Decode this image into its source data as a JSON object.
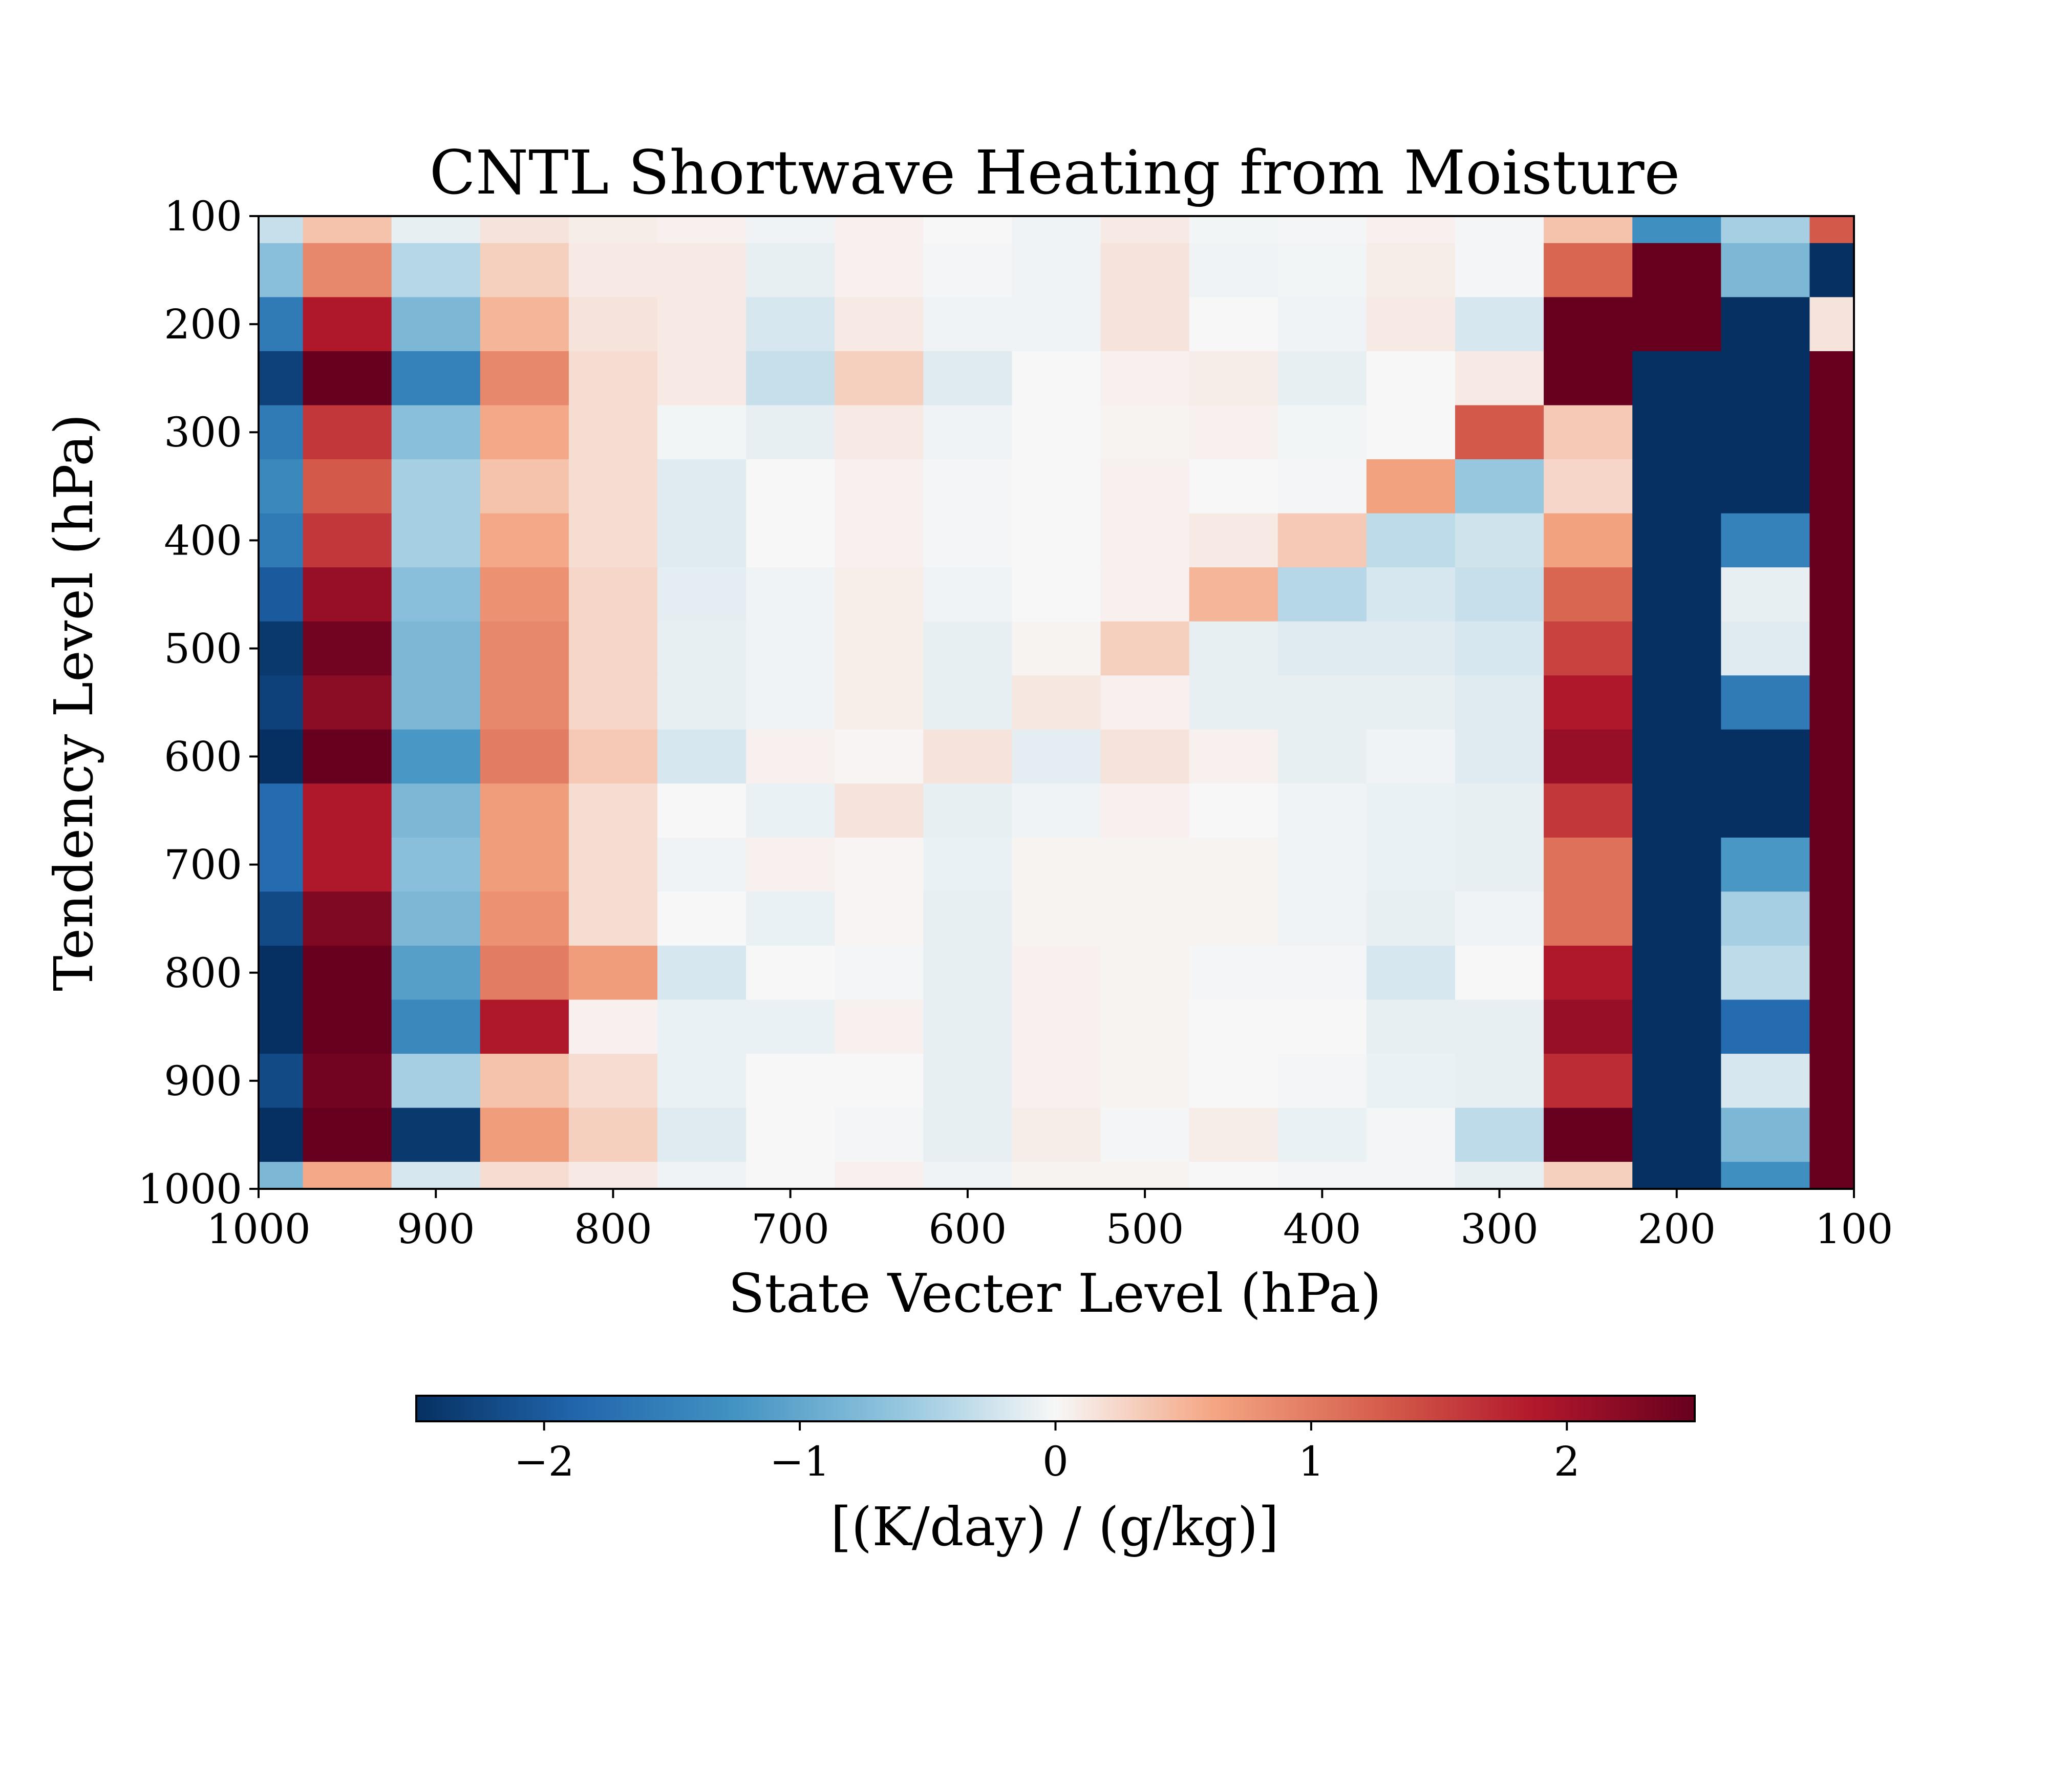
{
  "chart_data": {
    "type": "heatmap",
    "title": "CNTL Shortwave Heating from Moisture",
    "xlabel": "State Vecter Level (hPa)",
    "ylabel": "Tendency Level (hPa)",
    "x_levels": [
      1000,
      950,
      900,
      850,
      800,
      750,
      700,
      650,
      600,
      550,
      500,
      450,
      400,
      350,
      300,
      250,
      200,
      150,
      100
    ],
    "y_levels": [
      100,
      150,
      200,
      250,
      300,
      350,
      400,
      450,
      500,
      550,
      600,
      650,
      700,
      750,
      800,
      850,
      900,
      950,
      1000
    ],
    "x_ticks": [
      "1000",
      "900",
      "800",
      "700",
      "600",
      "500",
      "400",
      "300",
      "200",
      "100"
    ],
    "y_ticks": [
      "100",
      "200",
      "300",
      "400",
      "500",
      "600",
      "700",
      "800",
      "900",
      "1000"
    ],
    "xlim": [
      1000,
      100
    ],
    "ylim": [
      1000,
      100
    ],
    "colormap": "RdBu_r",
    "vmin": -2.5,
    "vmax": 2.5,
    "colorbar": {
      "label": "[(K/day) / (g/kg)]",
      "orientation": "horizontal",
      "ticks": [
        -2,
        -1,
        0,
        1,
        2
      ],
      "tick_labels": [
        "−2",
        "−1",
        "0",
        "1",
        "2"
      ]
    },
    "values": [
      [
        -0.3,
        0.4,
        -0.1,
        0.15,
        0.08,
        0.05,
        -0.05,
        0.05,
        0.0,
        -0.05,
        0.1,
        -0.03,
        -0.02,
        0.05,
        -0.02,
        0.4,
        -1.3,
        -0.5,
        1.3
      ],
      [
        -0.7,
        0.9,
        -0.4,
        0.3,
        0.1,
        0.1,
        -0.1,
        0.05,
        -0.02,
        -0.05,
        0.15,
        -0.05,
        -0.03,
        0.08,
        -0.02,
        1.2,
        2.8,
        -0.8,
        -2.8
      ],
      [
        -1.6,
        1.9,
        -0.8,
        0.5,
        0.15,
        0.1,
        -0.2,
        0.1,
        -0.05,
        -0.05,
        0.15,
        0.0,
        -0.05,
        0.1,
        -0.2,
        2.8,
        2.8,
        -2.8,
        0.15
      ],
      [
        -2.3,
        2.7,
        -1.5,
        0.9,
        0.2,
        0.1,
        -0.3,
        0.3,
        -0.15,
        0.0,
        0.05,
        0.08,
        -0.1,
        0.0,
        0.1,
        2.8,
        -2.8,
        -2.8,
        2.8
      ],
      [
        -1.6,
        1.6,
        -0.7,
        0.6,
        0.2,
        -0.03,
        -0.1,
        0.1,
        -0.05,
        0.0,
        0.03,
        0.05,
        -0.03,
        0.0,
        1.3,
        0.35,
        -2.8,
        -2.8,
        2.8
      ],
      [
        -1.4,
        1.3,
        -0.5,
        0.4,
        0.2,
        -0.15,
        0.0,
        0.05,
        -0.02,
        0.0,
        0.05,
        0.0,
        -0.02,
        0.65,
        -0.6,
        0.25,
        -2.8,
        -2.8,
        2.8
      ],
      [
        -1.6,
        1.6,
        -0.5,
        0.6,
        0.2,
        -0.15,
        0.0,
        0.05,
        -0.02,
        0.0,
        0.05,
        0.1,
        0.35,
        -0.35,
        -0.25,
        0.65,
        -2.8,
        -1.5,
        2.8
      ],
      [
        -2.0,
        2.1,
        -0.7,
        0.8,
        0.25,
        -0.12,
        -0.05,
        0.07,
        -0.05,
        0.0,
        0.05,
        0.5,
        -0.4,
        -0.2,
        -0.3,
        1.2,
        -2.8,
        -0.1,
        2.8
      ],
      [
        -2.4,
        2.4,
        -0.8,
        0.9,
        0.25,
        -0.1,
        -0.05,
        0.07,
        -0.1,
        0.03,
        0.3,
        -0.1,
        -0.15,
        -0.15,
        -0.2,
        1.5,
        -2.8,
        -0.15,
        2.8
      ],
      [
        -2.3,
        2.2,
        -0.8,
        0.9,
        0.25,
        -0.1,
        -0.05,
        0.07,
        -0.1,
        0.12,
        0.05,
        -0.1,
        -0.1,
        -0.1,
        -0.15,
        1.9,
        -2.8,
        -1.6,
        2.8
      ],
      [
        -2.5,
        2.6,
        -1.2,
        1.0,
        0.35,
        -0.2,
        0.05,
        0.02,
        0.15,
        -0.12,
        0.15,
        0.05,
        -0.1,
        -0.05,
        -0.15,
        2.1,
        -2.8,
        -2.8,
        2.8
      ],
      [
        -1.8,
        1.9,
        -0.8,
        0.7,
        0.2,
        0.0,
        -0.08,
        0.15,
        -0.1,
        -0.05,
        0.05,
        0.0,
        -0.05,
        -0.08,
        -0.1,
        1.6,
        -2.8,
        -2.8,
        2.8
      ],
      [
        -1.8,
        1.9,
        -0.7,
        0.7,
        0.2,
        -0.05,
        0.05,
        0.02,
        -0.08,
        0.03,
        0.03,
        0.03,
        -0.05,
        -0.08,
        -0.1,
        1.1,
        -2.8,
        -1.2,
        2.8
      ],
      [
        -2.2,
        2.3,
        -0.8,
        0.8,
        0.2,
        0.0,
        -0.08,
        0.02,
        -0.1,
        0.03,
        0.03,
        0.03,
        -0.05,
        -0.1,
        -0.05,
        1.1,
        -2.8,
        -0.5,
        2.8
      ],
      [
        -2.6,
        2.7,
        -1.1,
        1.0,
        0.7,
        -0.2,
        0.0,
        -0.02,
        -0.1,
        0.05,
        0.03,
        -0.02,
        -0.02,
        -0.2,
        0.0,
        1.9,
        -2.8,
        -0.35,
        2.8
      ],
      [
        -2.5,
        2.7,
        -1.4,
        1.9,
        0.05,
        -0.08,
        -0.08,
        0.05,
        -0.1,
        0.05,
        0.03,
        0.0,
        0.0,
        -0.1,
        -0.1,
        2.1,
        -2.8,
        -1.8,
        2.8
      ],
      [
        -2.2,
        2.4,
        -0.5,
        0.4,
        0.2,
        -0.08,
        0.0,
        0.0,
        -0.1,
        0.05,
        0.03,
        0.0,
        -0.02,
        -0.08,
        -0.1,
        1.7,
        -2.8,
        -0.2,
        2.8
      ],
      [
        -2.5,
        2.8,
        -2.4,
        0.7,
        0.3,
        -0.15,
        0.0,
        -0.02,
        -0.1,
        0.08,
        -0.02,
        0.08,
        -0.08,
        -0.02,
        -0.35,
        2.8,
        -2.8,
        -0.8,
        2.8
      ],
      [
        -0.8,
        0.6,
        -0.2,
        0.2,
        0.1,
        -0.05,
        0.0,
        0.05,
        -0.05,
        0.03,
        0.03,
        0.0,
        -0.02,
        -0.02,
        -0.1,
        0.3,
        -2.8,
        -1.3,
        2.8
      ]
    ]
  }
}
